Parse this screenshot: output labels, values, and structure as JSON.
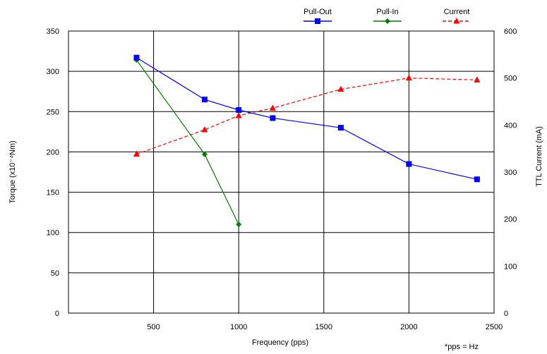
{
  "chart_data": {
    "type": "line",
    "xlabel": "Frequency (pps)",
    "ylabel": "Torque (x10⁻⁴Nm)",
    "y2label": "TTL Current (mA)",
    "note": "*pps = Hz",
    "xlim": [
      0,
      2500
    ],
    "ylim": [
      0,
      350
    ],
    "y2lim": [
      0,
      600
    ],
    "xticks": [
      "500",
      "1000",
      "1500",
      "2000",
      "2500"
    ],
    "yticks": [
      "0",
      "50",
      "100",
      "150",
      "200",
      "250",
      "300",
      "350"
    ],
    "y2ticks": [
      "0",
      "100",
      "200",
      "300",
      "400",
      "500",
      "600"
    ],
    "grid": true,
    "legend_position": "top-right",
    "series": [
      {
        "name": "Pull-Out",
        "axis": "left",
        "color": "#0000ff",
        "marker": "square",
        "line": "solid",
        "x": [
          400,
          800,
          1000,
          1200,
          1600,
          2000,
          2400
        ],
        "y": [
          317,
          265,
          252,
          242,
          230,
          185,
          166
        ]
      },
      {
        "name": "Pull-In",
        "axis": "left",
        "color": "#008000",
        "marker": "diamond",
        "line": "solid",
        "x": [
          400,
          800,
          1000
        ],
        "y": [
          314,
          197,
          110
        ]
      },
      {
        "name": "Current",
        "axis": "right",
        "color": "#ff0000",
        "marker": "triangle",
        "line": "dashed",
        "x": [
          400,
          800,
          1000,
          1200,
          1600,
          2000,
          2400
        ],
        "y": [
          338,
          390,
          420,
          436,
          476,
          500,
          496
        ]
      }
    ]
  }
}
